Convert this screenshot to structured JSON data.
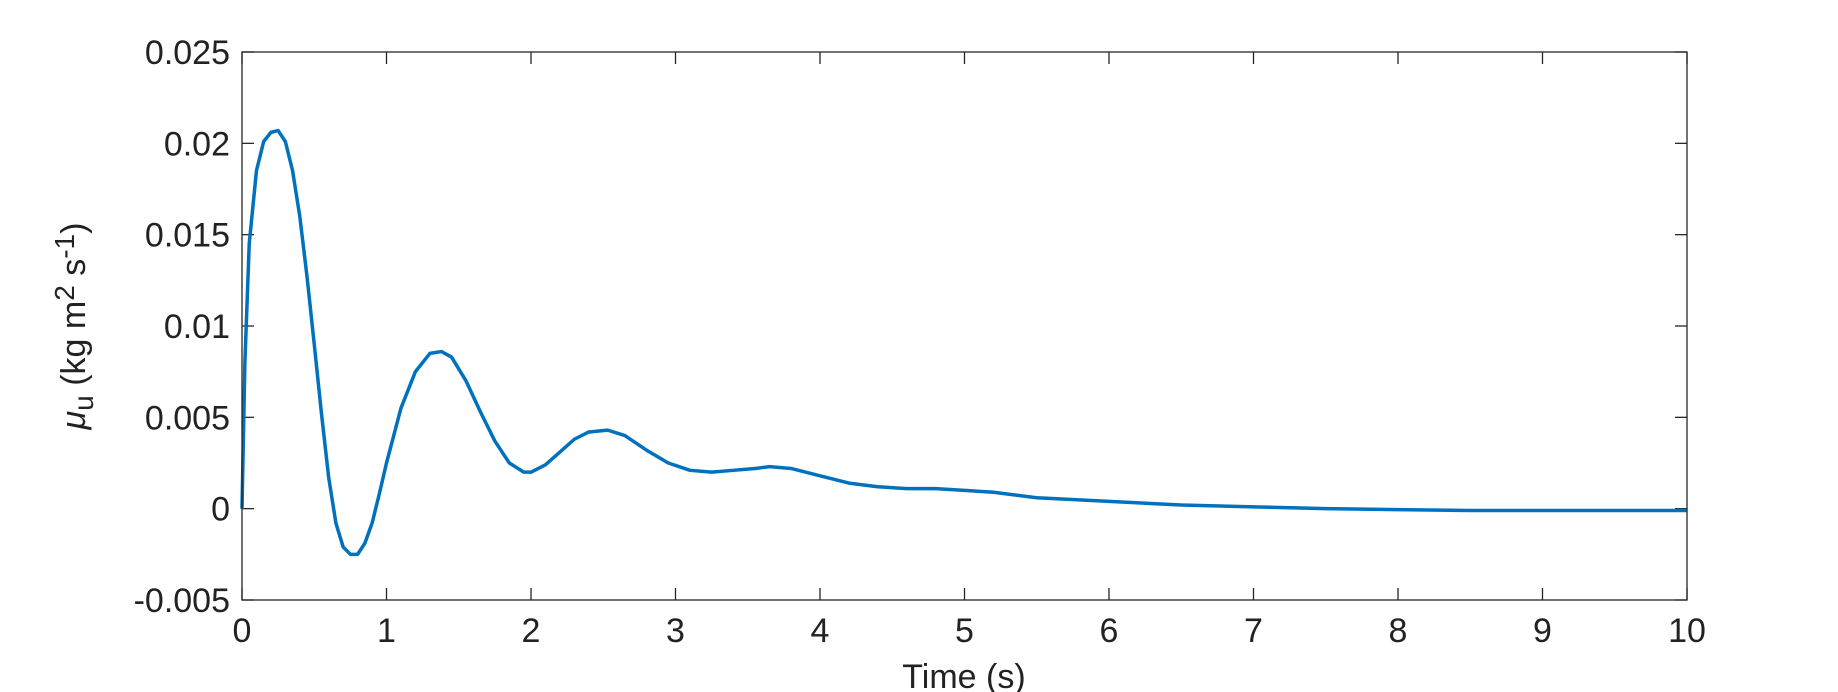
{
  "chart_data": {
    "type": "line",
    "xlabel": "Time (s)",
    "ylabel_parts": [
      {
        "text": "μ",
        "style": "italic"
      },
      {
        "text": "u",
        "style": "sub"
      },
      {
        "text": " (kg m",
        "style": "normal"
      },
      {
        "text": "2",
        "style": "sup"
      },
      {
        "text": " s",
        "style": "normal"
      },
      {
        "text": "-1",
        "style": "sup"
      },
      {
        "text": ")",
        "style": "normal"
      }
    ],
    "x": [
      0,
      0.02,
      0.05,
      0.1,
      0.15,
      0.2,
      0.25,
      0.3,
      0.35,
      0.4,
      0.45,
      0.5,
      0.55,
      0.6,
      0.65,
      0.7,
      0.75,
      0.8,
      0.85,
      0.9,
      0.95,
      1.0,
      1.1,
      1.2,
      1.3,
      1.38,
      1.45,
      1.55,
      1.65,
      1.75,
      1.85,
      1.95,
      2.0,
      2.1,
      2.2,
      2.3,
      2.4,
      2.53,
      2.65,
      2.8,
      2.95,
      3.1,
      3.25,
      3.4,
      3.55,
      3.65,
      3.8,
      4.0,
      4.2,
      4.4,
      4.6,
      4.8,
      5.0,
      5.2,
      5.5,
      6,
      6.5,
      7,
      7.5,
      8,
      8.5,
      9,
      9.5,
      10
    ],
    "series": [
      {
        "color": "#0072bd",
        "values": [
          0,
          0.008,
          0.0145,
          0.0185,
          0.0201,
          0.0206,
          0.0207,
          0.0201,
          0.0185,
          0.016,
          0.0127,
          0.009,
          0.0052,
          0.0017,
          -0.0008,
          -0.0021,
          -0.0025,
          -0.0025,
          -0.0019,
          -0.0008,
          0.0008,
          0.0025,
          0.0055,
          0.0075,
          0.0085,
          0.0086,
          0.0083,
          0.007,
          0.0053,
          0.0037,
          0.0025,
          0.002,
          0.002,
          0.0024,
          0.0031,
          0.0038,
          0.0042,
          0.0043,
          0.004,
          0.0032,
          0.0025,
          0.0021,
          0.002,
          0.0021,
          0.0022,
          0.0023,
          0.0022,
          0.0018,
          0.0014,
          0.0012,
          0.0011,
          0.0011,
          0.001,
          0.0009,
          0.0006,
          0.0004,
          0.0002,
          0.0001,
          0,
          -5e-05,
          -0.0001,
          -0.0001,
          -0.0001,
          -0.0001
        ]
      }
    ],
    "xlim": [
      0,
      10
    ],
    "xticks": [
      0,
      1,
      2,
      3,
      4,
      5,
      6,
      7,
      8,
      9,
      10
    ],
    "ylim": [
      -0.005,
      0.025
    ],
    "yticks": [
      -0.005,
      0,
      0.005,
      0.01,
      0.015,
      0.02,
      0.025
    ],
    "grid": false
  }
}
